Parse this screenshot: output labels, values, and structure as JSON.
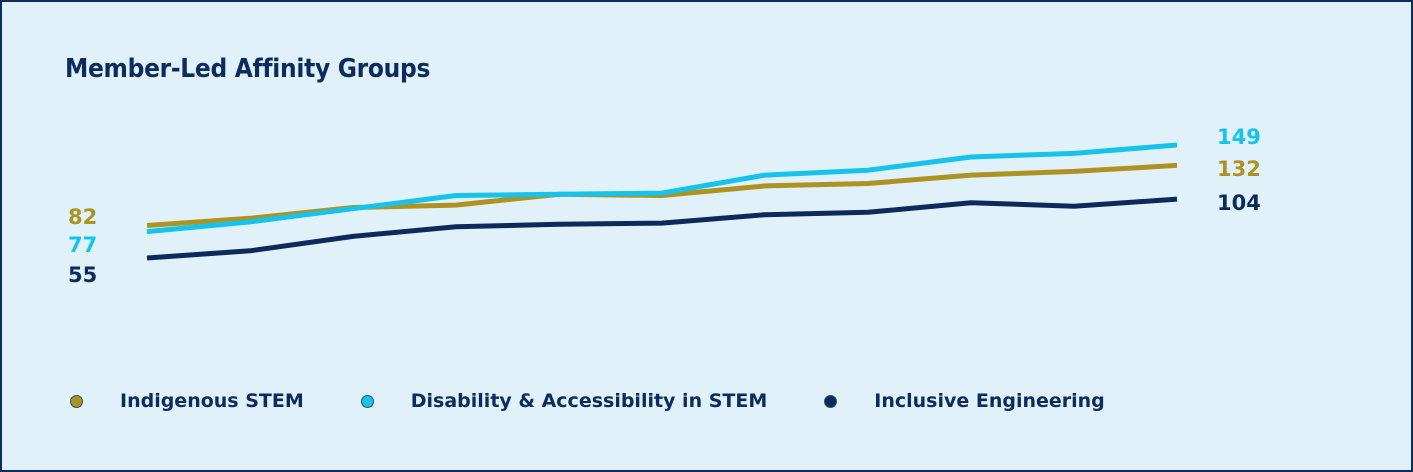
{
  "chart_data": {
    "type": "line",
    "title": "Member-Led Affinity Groups",
    "xlabel": "",
    "ylabel": "",
    "ylim": [
      40,
      160
    ],
    "grid": false,
    "legend_position": "bottom-left",
    "x": [
      1,
      2,
      3,
      4,
      5,
      6,
      7,
      8,
      9,
      10,
      11
    ],
    "series": [
      {
        "name": "Indigenous STEM",
        "color": "#ad9321",
        "values": [
          82,
          88,
          97,
          99,
          108,
          107,
          115,
          117,
          124,
          127,
          132
        ],
        "start_label": "82",
        "end_label": "132"
      },
      {
        "name": "Disability & Accessibility in STEM",
        "color": "#16c3ea",
        "values": [
          77,
          85,
          96,
          107,
          108,
          109,
          124,
          128,
          139,
          142,
          149
        ],
        "start_label": "77",
        "end_label": "149"
      },
      {
        "name": "Inclusive Engineering",
        "color": "#0e2a5a",
        "values": [
          55,
          61,
          73,
          81,
          83,
          84,
          91,
          93,
          101,
          98,
          104
        ],
        "start_label": "55",
        "end_label": "104"
      }
    ]
  }
}
